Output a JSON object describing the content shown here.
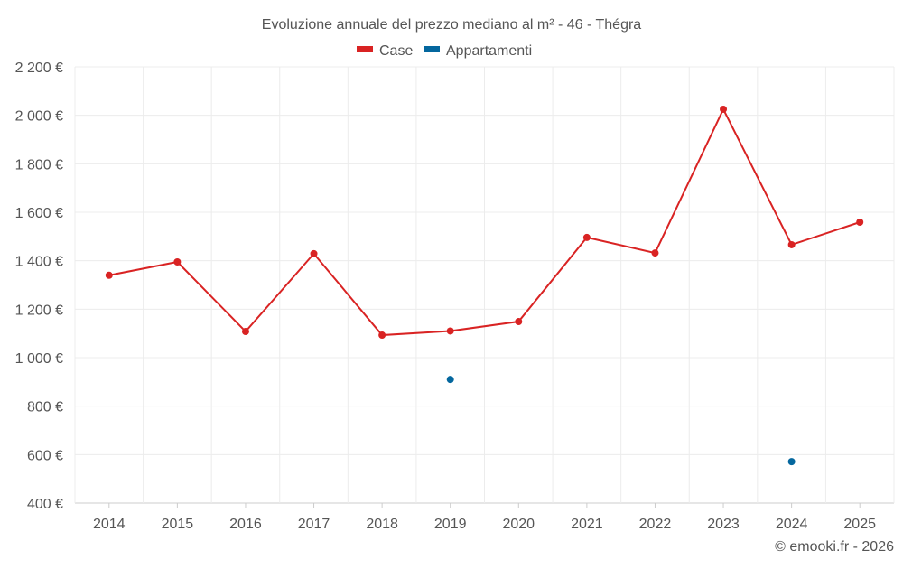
{
  "chart_data": {
    "type": "line",
    "title": "Evoluzione annuale del prezzo mediano al m² - 46 - Thégra",
    "xlabel": "",
    "ylabel": "",
    "categories": [
      "2014",
      "2015",
      "2016",
      "2017",
      "2018",
      "2019",
      "2020",
      "2021",
      "2022",
      "2023",
      "2024",
      "2025"
    ],
    "ylim": [
      400,
      2200
    ],
    "yticks": [
      400,
      600,
      800,
      1000,
      1200,
      1400,
      1600,
      1800,
      2000,
      2200
    ],
    "ytick_labels": [
      "400 €",
      "600 €",
      "800 €",
      "1 000 €",
      "1 200 €",
      "1 400 €",
      "1 600 €",
      "1 800 €",
      "2 000 €",
      "2 200 €"
    ],
    "grid": true,
    "legend_position": "top-center",
    "series": [
      {
        "name": "Case",
        "color": "#d92323",
        "values": [
          1340,
          1395,
          1108,
          1429,
          1093,
          1110,
          1149,
          1496,
          1432,
          2025,
          1466,
          1559
        ]
      },
      {
        "name": "Appartamenti",
        "color": "#04679e",
        "values": [
          null,
          null,
          null,
          null,
          null,
          910,
          null,
          null,
          null,
          null,
          571,
          null
        ]
      }
    ],
    "credit": "© emooki.fr - 2026"
  }
}
